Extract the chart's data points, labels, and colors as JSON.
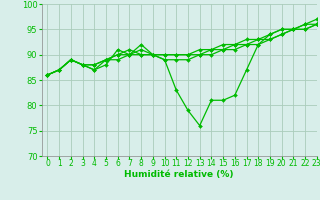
{
  "xlabel": "Humidité relative (%)",
  "xlim": [
    -0.5,
    23
  ],
  "ylim": [
    70,
    100
  ],
  "yticks": [
    70,
    75,
    80,
    85,
    90,
    95,
    100
  ],
  "xticks": [
    0,
    1,
    2,
    3,
    4,
    5,
    6,
    7,
    8,
    9,
    10,
    11,
    12,
    13,
    14,
    15,
    16,
    17,
    18,
    19,
    20,
    21,
    22,
    23
  ],
  "background_color": "#d8eeea",
  "grid_color": "#aaccbb",
  "line_color": "#00bb00",
  "series": [
    [
      86,
      87,
      89,
      88,
      87,
      88,
      91,
      90,
      92,
      90,
      89,
      83,
      79,
      76,
      81,
      81,
      82,
      87,
      92,
      94,
      95,
      95,
      96,
      97
    ],
    [
      86,
      87,
      89,
      88,
      88,
      89,
      90,
      90,
      91,
      90,
      90,
      90,
      90,
      91,
      91,
      92,
      92,
      93,
      93,
      94,
      95,
      95,
      96,
      96
    ],
    [
      86,
      87,
      89,
      88,
      87,
      89,
      89,
      90,
      90,
      90,
      89,
      89,
      89,
      90,
      90,
      91,
      91,
      92,
      92,
      93,
      94,
      95,
      95,
      96
    ],
    [
      86,
      87,
      89,
      88,
      88,
      89,
      90,
      91,
      90,
      90,
      90,
      90,
      90,
      90,
      91,
      91,
      92,
      92,
      93,
      93,
      94,
      95,
      95,
      96
    ]
  ]
}
